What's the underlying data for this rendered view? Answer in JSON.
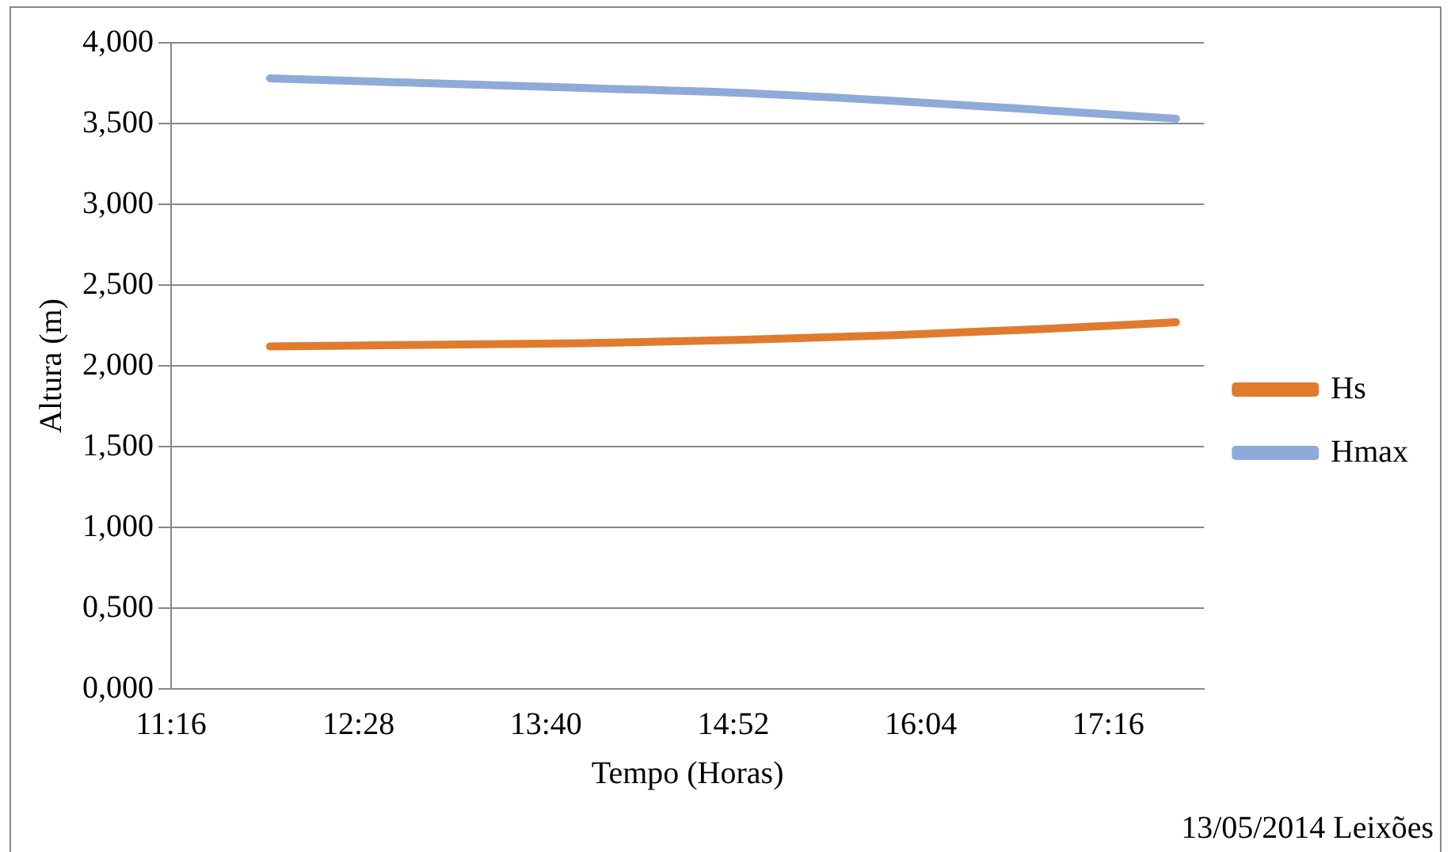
{
  "chart_data": {
    "type": "line",
    "xlabel": "Tempo (Horas)",
    "ylabel": "Altura (m)",
    "x": [
      11.9,
      12.9,
      13.9,
      14.9,
      15.9,
      16.9,
      17.7
    ],
    "series": [
      {
        "name": "Hs",
        "color": "#e07b2e",
        "values": [
          2.12,
          2.13,
          2.14,
          2.16,
          2.19,
          2.23,
          2.27
        ]
      },
      {
        "name": "Hmax",
        "color": "#8eaad8",
        "values": [
          3.78,
          3.75,
          3.72,
          3.69,
          3.64,
          3.58,
          3.53
        ]
      }
    ],
    "xlim": [
      11.2667,
      17.88
    ],
    "xticks": [
      {
        "value": 11.2667,
        "label": "11:16"
      },
      {
        "value": 12.4667,
        "label": "12:28"
      },
      {
        "value": 13.6667,
        "label": "13:40"
      },
      {
        "value": 14.8667,
        "label": "14:52"
      },
      {
        "value": 16.0667,
        "label": "16:04"
      },
      {
        "value": 17.2667,
        "label": "17:16"
      }
    ],
    "ylim": [
      0,
      4
    ],
    "yticks": [
      {
        "value": 0,
        "label": "0,000"
      },
      {
        "value": 0.5,
        "label": "0,500"
      },
      {
        "value": 1,
        "label": "1,000"
      },
      {
        "value": 1.5,
        "label": "1,500"
      },
      {
        "value": 2,
        "label": "2,000"
      },
      {
        "value": 2.5,
        "label": "2,500"
      },
      {
        "value": 3,
        "label": "3,000"
      },
      {
        "value": 3.5,
        "label": "3,500"
      },
      {
        "value": 4,
        "label": "4,000"
      }
    ],
    "grid": "y",
    "legend": "right",
    "marker": "none",
    "line_style": "solid",
    "annotations": [
      "13/05/2014 Leixões"
    ]
  }
}
